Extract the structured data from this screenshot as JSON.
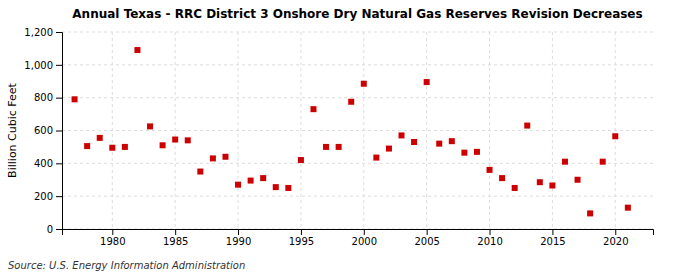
{
  "chart_data": {
    "type": "scatter",
    "title": "Annual Texas - RRC District 3 Onshore Dry Natural Gas Reserves Revision Decreases",
    "ylabel": "Billion Cubic Feet",
    "source": "Source: U.S. Energy Information Administration",
    "color": "#cc0000",
    "marker": "square",
    "grid": true,
    "xlim": [
      1976,
      2023
    ],
    "ylim": [
      0,
      1200
    ],
    "xticks": [
      1980,
      1985,
      1990,
      1995,
      2000,
      2005,
      2010,
      2015,
      2020
    ],
    "yticks": [
      0,
      200,
      400,
      600,
      800,
      {
        "value": 1000,
        "label": "1,000"
      },
      {
        "value": 1200,
        "label": "1,200"
      }
    ],
    "x": [
      1977,
      1978,
      1979,
      1980,
      1981,
      1982,
      1983,
      1984,
      1985,
      1986,
      1987,
      1988,
      1989,
      1990,
      1991,
      1992,
      1993,
      1994,
      1995,
      1996,
      1997,
      1998,
      1999,
      2000,
      2001,
      2002,
      2003,
      2004,
      2005,
      2006,
      2007,
      2008,
      2009,
      2010,
      2011,
      2012,
      2013,
      2014,
      2015,
      2016,
      2017,
      2018,
      2019,
      2020,
      2021
    ],
    "values": [
      790,
      505,
      555,
      495,
      500,
      1090,
      625,
      510,
      545,
      540,
      350,
      430,
      440,
      270,
      295,
      310,
      255,
      250,
      420,
      730,
      500,
      500,
      775,
      885,
      435,
      490,
      570,
      530,
      895,
      520,
      535,
      465,
      470,
      360,
      310,
      250,
      630,
      285,
      265,
      410,
      300,
      95,
      410,
      565,
      130
    ]
  }
}
